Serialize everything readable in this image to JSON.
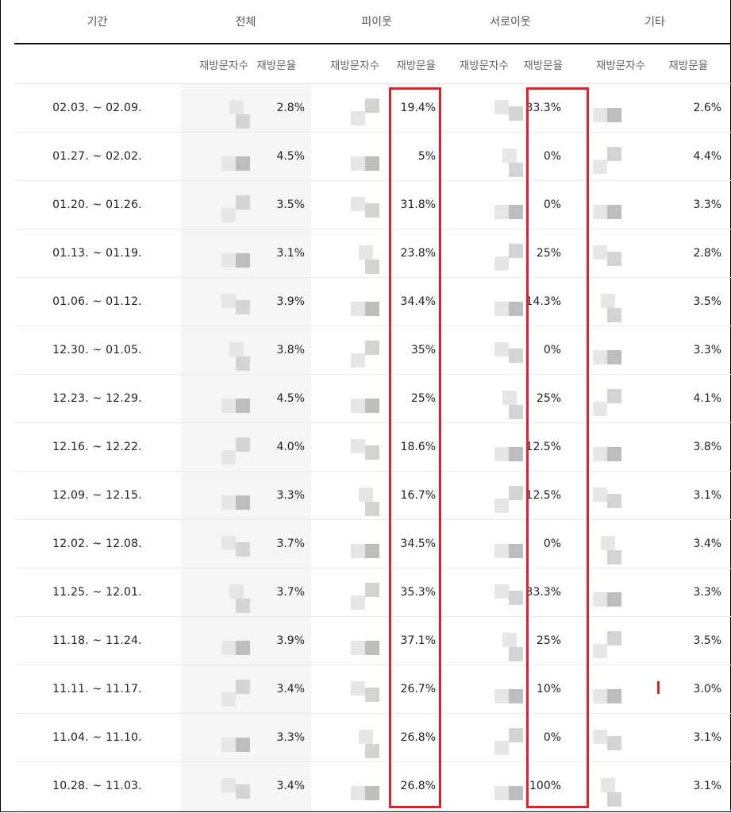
{
  "headers": {
    "period": "기간",
    "groups": [
      "전체",
      "피이웃",
      "서로이웃",
      "기타"
    ],
    "sub_count": "재방문자수",
    "sub_rate": "재방문율"
  },
  "rows": [
    {
      "period": "02.03. ~ 02.09.",
      "all": "2.8%",
      "pi": "19.4%",
      "seo": "33.3%",
      "etc": "2.6%"
    },
    {
      "period": "01.27. ~ 02.02.",
      "all": "4.5%",
      "pi": "5%",
      "seo": "0%",
      "etc": "4.4%"
    },
    {
      "period": "01.20. ~ 01.26.",
      "all": "3.5%",
      "pi": "31.8%",
      "seo": "0%",
      "etc": "3.3%"
    },
    {
      "period": "01.13. ~ 01.19.",
      "all": "3.1%",
      "pi": "23.8%",
      "seo": "25%",
      "etc": "2.8%"
    },
    {
      "period": "01.06. ~ 01.12.",
      "all": "3.9%",
      "pi": "34.4%",
      "seo": "14.3%",
      "etc": "3.5%"
    },
    {
      "period": "12.30. ~ 01.05.",
      "all": "3.8%",
      "pi": "35%",
      "seo": "0%",
      "etc": "3.3%"
    },
    {
      "period": "12.23. ~ 12.29.",
      "all": "4.5%",
      "pi": "25%",
      "seo": "25%",
      "etc": "4.1%"
    },
    {
      "period": "12.16. ~ 12.22.",
      "all": "4.0%",
      "pi": "18.6%",
      "seo": "12.5%",
      "etc": "3.8%"
    },
    {
      "period": "12.09. ~ 12.15.",
      "all": "3.3%",
      "pi": "16.7%",
      "seo": "12.5%",
      "etc": "3.1%"
    },
    {
      "period": "12.02. ~ 12.08.",
      "all": "3.7%",
      "pi": "34.5%",
      "seo": "0%",
      "etc": "3.4%"
    },
    {
      "period": "11.25. ~ 12.01.",
      "all": "3.7%",
      "pi": "35.3%",
      "seo": "33.3%",
      "etc": "3.3%"
    },
    {
      "period": "11.18. ~ 11.24.",
      "all": "3.9%",
      "pi": "37.1%",
      "seo": "25%",
      "etc": "3.5%"
    },
    {
      "period": "11.11. ~ 11.17.",
      "all": "3.4%",
      "pi": "26.7%",
      "seo": "10%",
      "etc": "3.0%"
    },
    {
      "period": "11.04. ~ 11.10.",
      "all": "3.3%",
      "pi": "26.8%",
      "seo": "0%",
      "etc": "3.1%"
    },
    {
      "period": "10.28. ~ 11.03.",
      "all": "3.4%",
      "pi": "26.8%",
      "seo": "100%",
      "etc": "3.1%"
    }
  ],
  "colors": {
    "highlight": "#e0202a",
    "header_rule": "#111111"
  }
}
